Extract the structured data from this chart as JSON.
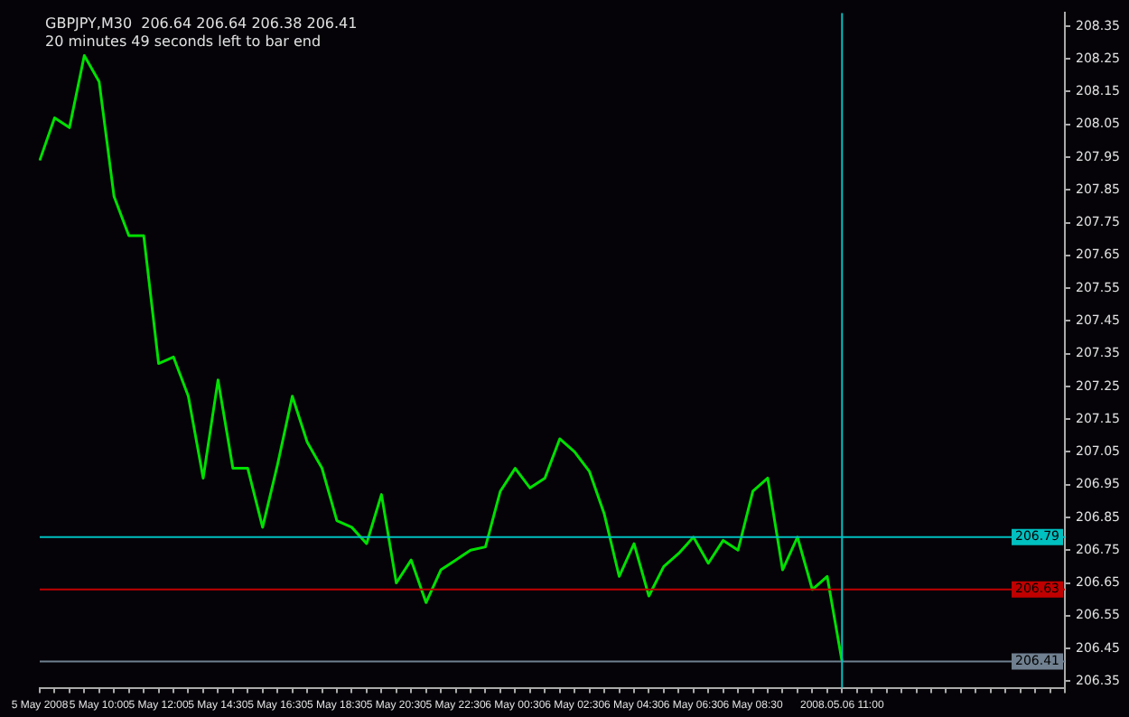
{
  "chart_data": {
    "type": "line",
    "title": "GBPJPY,M30  206.64 206.64 206.38 206.41",
    "subtitle": "20 minutes 49 seconds left to bar end",
    "categories": [
      "5 May 2008",
      null,
      null,
      null,
      "5 May 10:00",
      null,
      null,
      null,
      "5 May 12:00",
      null,
      null,
      null,
      "5 May 14:30",
      null,
      null,
      null,
      "5 May 16:30",
      null,
      null,
      null,
      "5 May 18:30",
      null,
      null,
      null,
      "5 May 20:30",
      null,
      null,
      null,
      "5 May 22:30",
      null,
      null,
      null,
      "6 May 00:30",
      null,
      null,
      null,
      "6 May 02:30",
      null,
      null,
      null,
      "6 May 04:30",
      null,
      null,
      null,
      "6 May 06:30",
      null,
      null,
      null,
      "6 May 08:30",
      null,
      null,
      null,
      null,
      null,
      "2008.05.06 11:00"
    ],
    "series": [
      {
        "color": "#00e000",
        "values": [
          207.94,
          208.07,
          208.04,
          208.26,
          208.18,
          207.83,
          207.71,
          207.71,
          207.32,
          207.34,
          207.22,
          206.97,
          207.27,
          207.0,
          207.0,
          206.82,
          207.01,
          207.22,
          207.08,
          207.0,
          206.84,
          206.82,
          206.77,
          206.92,
          206.65,
          206.72,
          206.59,
          206.69,
          206.72,
          206.75,
          206.76,
          206.93,
          207.0,
          206.94,
          206.97,
          207.09,
          207.05,
          206.99,
          206.86,
          206.67,
          206.77,
          206.61,
          206.7,
          206.74,
          206.79,
          206.71,
          206.78,
          206.75,
          206.93,
          206.97,
          206.69,
          206.79,
          206.63,
          206.67,
          206.41
        ]
      }
    ],
    "ylim": [
      206.33,
      208.39
    ],
    "yticks": [
      208.35,
      208.25,
      208.15,
      208.05,
      207.95,
      207.85,
      207.75,
      207.65,
      207.55,
      207.45,
      207.35,
      207.25,
      207.15,
      207.05,
      206.95,
      206.85,
      206.75,
      206.65,
      206.55,
      206.45,
      206.35
    ],
    "ref_lines": [
      {
        "axis": "y",
        "value": 206.79,
        "label": "206.79",
        "color": "#00c0c0"
      },
      {
        "axis": "y",
        "value": 206.63,
        "label": "206.63",
        "color": "#c00000"
      },
      {
        "axis": "y",
        "value": 206.41,
        "label": "206.41",
        "color": "#708090"
      },
      {
        "axis": "x",
        "value": "2008.05.06 11:00",
        "color": "#00c0c0"
      }
    ],
    "grid": false,
    "legend": false,
    "marker": "none",
    "line_style": "solid"
  }
}
